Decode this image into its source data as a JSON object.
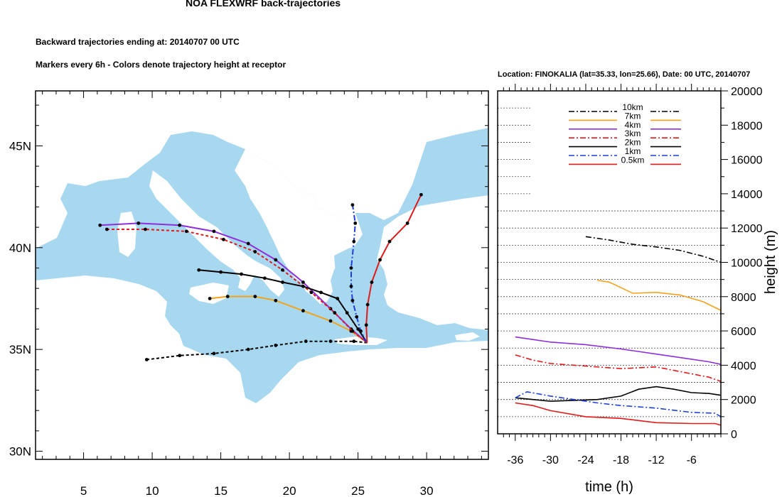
{
  "chart_data": [
    {
      "type": "map-trajectories",
      "title": "NOA FLEXWRF back-trajectories",
      "subtitle_1": "Backward trajectories ending at: 20140707  00 UTC",
      "subtitle_2": "Markers every 6h - Colors denote trajectory height at receptor",
      "lon_range": [
        1.5,
        34.5
      ],
      "lat_range": [
        29.6,
        47.7
      ],
      "x_ticks": [
        5,
        10,
        15,
        20,
        25,
        30
      ],
      "y_ticks": [
        {
          "value": 30,
          "label": "30N"
        },
        {
          "value": 35,
          "label": "35N"
        },
        {
          "value": 40,
          "label": "40N"
        },
        {
          "value": 45,
          "label": "45N"
        }
      ],
      "colors": {
        "sea": "#a8d8ef",
        "land": "#ffffff",
        "frame": "#000000"
      },
      "receptor": {
        "lon": 25.66,
        "lat": 35.33
      },
      "series": [
        {
          "name": "10km",
          "color": "#000000",
          "dash": "dashed",
          "points": [
            [
              25.66,
              35.33
            ],
            [
              24.7,
              35.4
            ],
            [
              23.0,
              35.4
            ],
            [
              21.2,
              35.4
            ],
            [
              19.0,
              35.2
            ],
            [
              17.0,
              35.0
            ],
            [
              14.5,
              34.8
            ],
            [
              12.0,
              34.7
            ],
            [
              9.6,
              34.5
            ]
          ]
        },
        {
          "name": "7km",
          "color": "#f4a21b",
          "dash": "solid",
          "points": [
            [
              25.66,
              35.33
            ],
            [
              24.5,
              35.9
            ],
            [
              23.0,
              36.4
            ],
            [
              21.0,
              36.9
            ],
            [
              19.0,
              37.4
            ],
            [
              17.5,
              37.6
            ],
            [
              15.5,
              37.6
            ],
            [
              14.2,
              37.5
            ]
          ]
        },
        {
          "name": "4km",
          "color": "#8f2fdc",
          "dash": "solid",
          "points": [
            [
              25.66,
              35.33
            ],
            [
              24.5,
              36.0
            ],
            [
              23.0,
              37.0
            ],
            [
              21.0,
              38.3
            ],
            [
              19.0,
              39.4
            ],
            [
              17.0,
              40.2
            ],
            [
              14.5,
              40.8
            ],
            [
              12.0,
              41.1
            ],
            [
              9.0,
              41.2
            ],
            [
              6.2,
              41.1
            ]
          ]
        },
        {
          "name": "3km",
          "color": "#e01a1a",
          "dash": "dashed",
          "points": [
            [
              25.66,
              35.33
            ],
            [
              24.6,
              35.9
            ],
            [
              23.3,
              36.8
            ],
            [
              21.6,
              37.8
            ],
            [
              19.5,
              38.9
            ],
            [
              17.5,
              39.8
            ],
            [
              15.2,
              40.4
            ],
            [
              12.5,
              40.8
            ],
            [
              9.5,
              40.9
            ],
            [
              6.7,
              40.9
            ]
          ]
        },
        {
          "name": "2km",
          "color": "#000000",
          "dash": "solid",
          "points": [
            [
              25.66,
              35.33
            ],
            [
              25.0,
              36.0
            ],
            [
              24.2,
              36.8
            ],
            [
              23.5,
              37.5
            ],
            [
              22.3,
              37.8
            ],
            [
              21.0,
              38.1
            ],
            [
              19.5,
              38.3
            ],
            [
              18.2,
              38.5
            ],
            [
              16.5,
              38.7
            ],
            [
              15.0,
              38.8
            ],
            [
              13.4,
              38.9
            ]
          ]
        },
        {
          "name": "1km",
          "color": "#1f3fdc",
          "dash": "dashdot",
          "points": [
            [
              25.66,
              35.33
            ],
            [
              25.2,
              35.9
            ],
            [
              24.9,
              36.6
            ],
            [
              24.6,
              37.4
            ],
            [
              24.5,
              38.1
            ],
            [
              24.5,
              39.0
            ],
            [
              24.7,
              40.3
            ],
            [
              24.8,
              41.2
            ],
            [
              24.6,
              42.1
            ]
          ]
        },
        {
          "name": "0.5km",
          "color": "#e01a1a",
          "dash": "solid",
          "points": [
            [
              25.66,
              35.33
            ],
            [
              25.6,
              36.2
            ],
            [
              25.7,
              37.2
            ],
            [
              26.0,
              38.3
            ],
            [
              26.6,
              39.4
            ],
            [
              27.3,
              40.3
            ],
            [
              28.6,
              41.2
            ],
            [
              29.6,
              42.6
            ]
          ]
        }
      ]
    },
    {
      "type": "line",
      "location_text": "Location: FINOKALIA (lat=35.33,  lon=25.66), Date: 00 UTC, 20140707",
      "xlabel": "time (h)",
      "ylabel": "height (m)",
      "xlim": [
        -39,
        -1
      ],
      "ylim": [
        0,
        20000
      ],
      "x_ticks": [
        -36,
        -30,
        -24,
        -18,
        -12,
        -6
      ],
      "y_ticks": [
        0,
        2000,
        4000,
        6000,
        8000,
        10000,
        12000,
        14000,
        16000,
        18000,
        20000
      ],
      "grid": "dashed-horizontal",
      "legend_position": "top",
      "series": [
        {
          "name": "10km",
          "color": "#000000",
          "dash": "dashdot",
          "x": [
            -24,
            -20,
            -16,
            -12,
            -8,
            -4,
            -1
          ],
          "values": [
            11500,
            11300,
            11050,
            10900,
            10700,
            10350,
            10000
          ]
        },
        {
          "name": "7km",
          "color": "#f4a21b",
          "dash": "solid",
          "x": [
            -22,
            -20,
            -16,
            -12,
            -8,
            -4,
            -1
          ],
          "values": [
            8950,
            8850,
            8200,
            8250,
            8100,
            7700,
            7200
          ]
        },
        {
          "name": "4km",
          "color": "#8f2fdc",
          "dash": "solid",
          "x": [
            -36,
            -33,
            -30,
            -24,
            -18,
            -12,
            -6,
            -3,
            -1
          ],
          "values": [
            5650,
            5500,
            5350,
            5200,
            4950,
            4650,
            4350,
            4200,
            4050
          ]
        },
        {
          "name": "3km",
          "color": "#e01a1a",
          "dash": "dashdot",
          "x": [
            -36,
            -33,
            -30,
            -24,
            -18,
            -12,
            -6,
            -3,
            -1
          ],
          "values": [
            4600,
            4300,
            4100,
            3950,
            3800,
            3900,
            3500,
            3300,
            3050
          ]
        },
        {
          "name": "2km",
          "color": "#000000",
          "dash": "solid",
          "x": [
            -36,
            -33,
            -30,
            -26,
            -22,
            -18,
            -15,
            -12,
            -9,
            -6,
            -3,
            -1
          ],
          "values": [
            2100,
            2000,
            1900,
            1950,
            2000,
            2200,
            2600,
            2750,
            2600,
            2400,
            2350,
            2250
          ]
        },
        {
          "name": "1km",
          "color": "#1f3fdc",
          "dash": "dashdot",
          "x": [
            -36,
            -34,
            -30,
            -26,
            -22,
            -18,
            -12,
            -6,
            -2,
            -1
          ],
          "values": [
            2100,
            2450,
            2200,
            2000,
            1800,
            1650,
            1500,
            1250,
            1200,
            1000
          ]
        },
        {
          "name": "0.5km",
          "color": "#e01a1a",
          "dash": "solid",
          "x": [
            -36,
            -33,
            -30,
            -24,
            -18,
            -12,
            -6,
            -2,
            -1
          ],
          "values": [
            1800,
            1650,
            1350,
            1000,
            900,
            650,
            600,
            600,
            500
          ]
        }
      ]
    }
  ]
}
